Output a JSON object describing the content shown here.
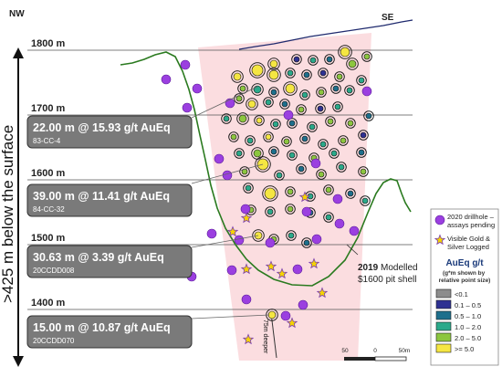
{
  "compass": {
    "west": "NW",
    "east": "SE"
  },
  "depth_caption": ">425 m below the surface",
  "elevation_levels": [
    {
      "label": "1800 m",
      "elev": 1800
    },
    {
      "label": "1700 m",
      "elev": 1700
    },
    {
      "label": "1600 m",
      "elev": 1600
    },
    {
      "label": "1500 m",
      "elev": 1500
    },
    {
      "label": "1400 m",
      "elev": 1400
    }
  ],
  "intercepts": [
    {
      "text": "22.00 m @ 15.93 g/t AuEq",
      "hole": "83-CC-4"
    },
    {
      "text": "39.00 m @ 11.41 g/t AuEq",
      "hole": "84-CC-32"
    },
    {
      "text": "30.63 m @ 3.39 g/t AuEq",
      "hole": "20CCDD008"
    },
    {
      "text": "15.00 m @ 10.87 g/t AuEq",
      "hole": "20CCDD070"
    }
  ],
  "pit_shell_label": {
    "year": "2019",
    "line1": " Modelled",
    "line2": "$1600 pit shell"
  },
  "drillhole_annotation": "75m deeper",
  "legend": {
    "pending_label": "2020 drillhole – assays pending",
    "visible_gold_label": "Visible Gold & Silver Logged",
    "title": "AuEq g/t",
    "subtitle": "(g*m shown by relative point size)",
    "grades": [
      {
        "label": "<0.1",
        "color": "#8c8c8c"
      },
      {
        "label": "0.1 – 0.5",
        "color": "#2e3192"
      },
      {
        "label": "0.5 – 1.0",
        "color": "#1d6f8c"
      },
      {
        "label": "1.0 – 2.0",
        "color": "#2aa98a"
      },
      {
        "label": "2.0 – 5.0",
        "color": "#8cc63f"
      },
      {
        "label": ">= 5.0",
        "color": "#f5e642"
      }
    ]
  },
  "scale_bar": {
    "labels": [
      "50",
      "0",
      "50m"
    ]
  },
  "colors": {
    "pit_shell": "#2a7a1f",
    "topography": "#1f2a6e",
    "pending": "#9b3fe0",
    "star": "#f5d400",
    "label_box": "#7a7a7a",
    "envelope": "#fbdde0"
  }
}
